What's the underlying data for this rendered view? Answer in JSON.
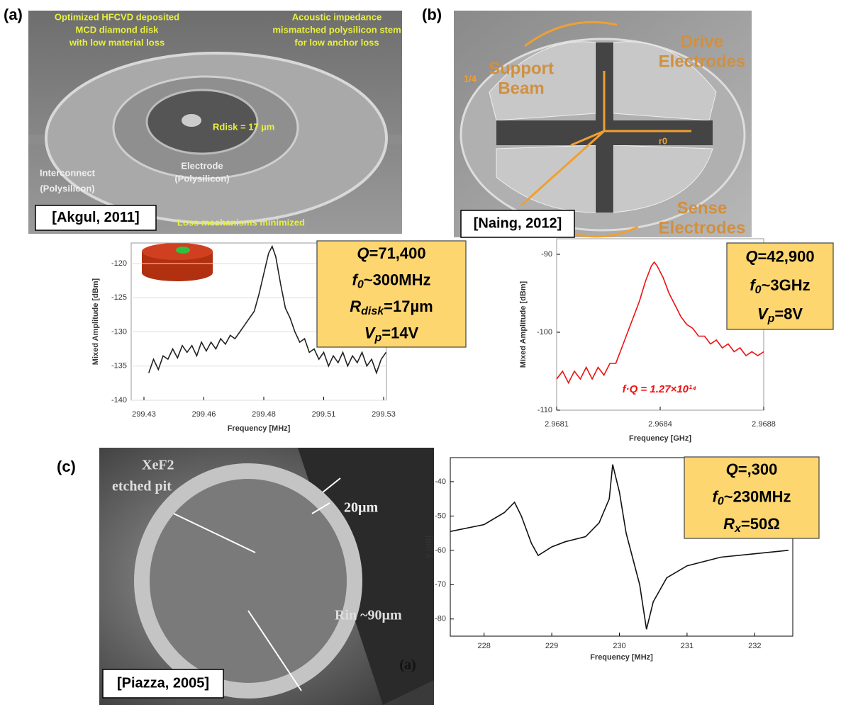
{
  "panels": [
    {
      "label": "(a)",
      "citation": "[Akgul, 2011]",
      "annotations": [
        "Optimized HFCVD deposited",
        "MCD diamond disk",
        "with low material loss",
        "Acoustic impedance",
        "mismatched polysilicon stem",
        "for low anchor loss",
        "Rdisk = 17 µm",
        "Electrode",
        "(Polysilicon)",
        "Interconnect",
        "(Polysilicon)",
        "Loss mechanisms minimized"
      ]
    },
    {
      "label": "(b)",
      "citation": "[Naing, 2012]",
      "annotations": [
        "Drive",
        "Electrodes",
        "Support",
        "Beam",
        "Sense",
        "Electrodes",
        "r0",
        "1/4"
      ]
    },
    {
      "label": "(c)",
      "citation": "[Piazza, 2005]",
      "annotations": [
        "XeF2",
        "etched pit",
        "20µm",
        "Rin ~90µm",
        "(a)"
      ]
    }
  ],
  "chart_data": [
    {
      "type": "line",
      "xlabel": "Frequency [MHz]",
      "ylabel": "Mixed Amplitude [dBm]",
      "xlim": [
        299.43,
        299.53
      ],
      "ylim": [
        -140,
        -117
      ],
      "xticks": [
        299.43,
        {
          "value": 299.455,
          "label": "299.46"
        },
        299.48,
        {
          "value": 299.505,
          "label": "299.51"
        },
        299.53
      ],
      "yticks": [
        -140,
        -135,
        -130,
        -125,
        -120
      ],
      "grid": true,
      "series": [
        {
          "color": "#222222",
          "x": [
            299.432,
            299.434,
            299.436,
            299.438,
            299.44,
            299.442,
            299.444,
            299.446,
            299.448,
            299.45,
            299.452,
            299.454,
            299.456,
            299.458,
            299.46,
            299.462,
            299.464,
            299.466,
            299.468,
            299.47,
            299.472,
            299.474,
            299.476,
            299.478,
            299.48,
            299.482,
            299.4835,
            299.485,
            299.487,
            299.489,
            299.491,
            299.493,
            299.495,
            299.497,
            299.499,
            299.501,
            299.503,
            299.505,
            299.507,
            299.509,
            299.511,
            299.513,
            299.515,
            299.517,
            299.519,
            299.521,
            299.523,
            299.525,
            299.527,
            299.529,
            299.531
          ],
          "values": [
            -136,
            -134,
            -135.5,
            -133.5,
            -134,
            -132.5,
            -133.8,
            -132,
            -133,
            -132,
            -133.5,
            -131.5,
            -132.8,
            -131.5,
            -132.5,
            -131,
            -131.8,
            -130.5,
            -131,
            -130,
            -129,
            -128,
            -127,
            -124.5,
            -121.5,
            -118.5,
            -117.5,
            -119,
            -123,
            -126.5,
            -128,
            -130,
            -131.5,
            -131,
            -133,
            -132.5,
            -134,
            -133,
            -135,
            -133.5,
            -134.5,
            -133,
            -135,
            -133.5,
            -134.5,
            -133,
            -135,
            -134,
            -136,
            -134,
            -133
          ]
        }
      ],
      "box": [
        {
          "symbol": "Q",
          "text": "=71,400"
        },
        {
          "symbol": "f",
          "sub": "0",
          "text": "~300MHz"
        },
        {
          "symbol": "R",
          "sub": "disk",
          "text": "=17µm"
        },
        {
          "symbol": "V",
          "sub": "p",
          "text": "=14V"
        }
      ]
    },
    {
      "type": "line",
      "xlabel": "Frequency [GHz]",
      "ylabel": "Mixed Amplitude [dBm]",
      "xlim": [
        2.9681,
        2.9688
      ],
      "ylim": [
        -110,
        -88
      ],
      "xticks": [
        2.9681,
        {
          "value": 2.96845,
          "label": "2.9684"
        },
        2.9688
      ],
      "yticks": [
        -110,
        -100,
        -90
      ],
      "grid": false,
      "note": "f·Q = 1.27×10¹⁴",
      "series": [
        {
          "color": "#ee1111",
          "x": [
            2.9681,
            2.96812,
            2.96814,
            2.96816,
            2.96818,
            2.9682,
            2.96822,
            2.96824,
            2.96826,
            2.96828,
            2.9683,
            2.96832,
            2.96834,
            2.96836,
            2.96838,
            2.9684,
            2.96842,
            2.96843,
            2.96844,
            2.96846,
            2.96848,
            2.9685,
            2.96852,
            2.96854,
            2.96856,
            2.96858,
            2.9686,
            2.96862,
            2.96864,
            2.96866,
            2.96868,
            2.9687,
            2.96872,
            2.96874,
            2.96876,
            2.96878,
            2.9688
          ],
          "values": [
            -106,
            -105,
            -106.5,
            -105,
            -106,
            -104.5,
            -106,
            -104.5,
            -105.5,
            -104,
            -104,
            -102,
            -100,
            -98,
            -96,
            -93.5,
            -91.5,
            -91,
            -91.5,
            -93,
            -95,
            -96.5,
            -98,
            -99,
            -99.5,
            -100.5,
            -100.5,
            -101.5,
            -101,
            -102,
            -101.5,
            -102.5,
            -102,
            -103,
            -102.5,
            -103,
            -102.5
          ]
        }
      ],
      "box": [
        {
          "symbol": "Q",
          "text": "=42,900"
        },
        {
          "symbol": "f",
          "sub": "0",
          "text": "~3GHz"
        },
        {
          "symbol": "V",
          "sub": "p",
          "text": "=8V"
        }
      ]
    },
    {
      "type": "line",
      "xlabel": "Frequency [MHz]",
      "ylabel": "Y [dB]",
      "xlim": [
        227.5,
        232.5
      ],
      "ylim": [
        -85,
        -33
      ],
      "xticks": [
        228,
        229,
        230,
        231,
        232
      ],
      "yticks": [
        -80,
        -70,
        -60,
        -50,
        -40
      ],
      "grid": false,
      "series": [
        {
          "color": "#111111",
          "x": [
            227.5,
            228,
            228.3,
            228.45,
            228.55,
            228.7,
            228.8,
            229,
            229.2,
            229.5,
            229.7,
            229.85,
            229.9,
            230,
            230.1,
            230.3,
            230.4,
            230.5,
            230.7,
            231,
            231.5,
            232,
            232.5
          ],
          "values": [
            -54.5,
            -52.5,
            -49,
            -46,
            -50,
            -58,
            -61.5,
            -59,
            -57.5,
            -56,
            -52,
            -45,
            -35,
            -43,
            -55,
            -70,
            -83,
            -75,
            -68,
            -64.5,
            -62,
            -61,
            -60
          ]
        }
      ],
      "box": [
        {
          "symbol": "Q",
          "text": "=,300"
        },
        {
          "symbol": "f",
          "sub": "0",
          "text": "~230MHz"
        },
        {
          "symbol": "R",
          "sub": "x",
          "text": "=50Ω"
        }
      ]
    }
  ]
}
